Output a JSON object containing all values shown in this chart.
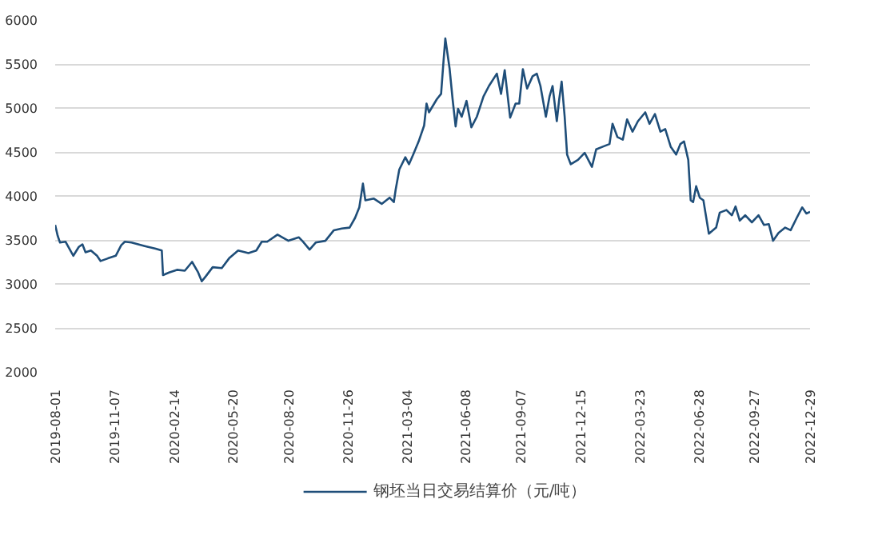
{
  "chart_data": {
    "type": "line",
    "x": [
      "2019-08-01",
      "2019-08-05",
      "2019-08-09",
      "2019-08-18",
      "2019-08-26",
      "2019-08-31",
      "2019-09-09",
      "2019-09-15",
      "2019-09-20",
      "2019-09-29",
      "2019-10-09",
      "2019-10-15",
      "2019-10-27",
      "2019-11-09",
      "2019-11-18",
      "2019-11-24",
      "2019-12-05",
      "2019-12-27",
      "2020-01-14",
      "2020-01-24",
      "2020-01-26",
      "2020-02-05",
      "2020-02-18",
      "2020-03-02",
      "2020-03-14",
      "2020-03-24",
      "2020-03-30",
      "2020-04-06",
      "2020-04-17",
      "2020-05-02",
      "2020-05-14",
      "2020-05-29",
      "2020-06-15",
      "2020-06-28",
      "2020-07-07",
      "2020-07-16",
      "2020-08-02",
      "2020-08-20",
      "2020-09-06",
      "2020-09-13",
      "2020-09-24",
      "2020-10-04",
      "2020-10-20",
      "2020-11-03",
      "2020-11-16",
      "2020-11-29",
      "2020-12-08",
      "2020-12-15",
      "2020-12-21",
      "2020-12-25",
      "2021-01-08",
      "2021-01-21",
      "2021-02-03",
      "2021-02-10",
      "2021-02-13",
      "2021-02-19",
      "2021-03-01",
      "2021-03-07",
      "2021-03-14",
      "2021-03-23",
      "2021-04-01",
      "2021-04-05",
      "2021-04-09",
      "2021-04-22",
      "2021-04-29",
      "2021-05-03",
      "2021-05-06",
      "2021-05-13",
      "2021-05-18",
      "2021-05-23",
      "2021-05-27",
      "2021-06-02",
      "2021-06-10",
      "2021-06-18",
      "2021-06-27",
      "2021-07-08",
      "2021-07-17",
      "2021-07-30",
      "2021-08-06",
      "2021-08-12",
      "2021-08-21",
      "2021-08-30",
      "2021-09-05",
      "2021-09-11",
      "2021-09-18",
      "2021-09-27",
      "2021-10-04",
      "2021-10-10",
      "2021-10-19",
      "2021-10-25",
      "2021-10-30",
      "2021-11-06",
      "2021-11-10",
      "2021-11-14",
      "2021-11-19",
      "2021-11-23",
      "2021-11-29",
      "2021-12-11",
      "2021-12-22",
      "2022-01-03",
      "2022-01-10",
      "2022-01-21",
      "2022-02-01",
      "2022-02-06",
      "2022-02-14",
      "2022-02-23",
      "2022-03-02",
      "2022-03-11",
      "2022-03-20",
      "2022-04-01",
      "2022-04-08",
      "2022-04-17",
      "2022-04-26",
      "2022-05-04",
      "2022-05-13",
      "2022-05-22",
      "2022-05-29",
      "2022-06-04",
      "2022-06-11",
      "2022-06-15",
      "2022-06-19",
      "2022-06-24",
      "2022-06-30",
      "2022-07-06",
      "2022-07-15",
      "2022-07-27",
      "2022-08-02",
      "2022-08-13",
      "2022-08-22",
      "2022-08-28",
      "2022-09-04",
      "2022-09-13",
      "2022-09-24",
      "2022-10-05",
      "2022-10-14",
      "2022-10-22",
      "2022-10-29",
      "2022-11-07",
      "2022-11-18",
      "2022-11-27",
      "2022-12-07",
      "2022-12-16",
      "2022-12-23",
      "2022-12-29"
    ],
    "series": [
      {
        "name": "钢坯当日交易结算价（元/吨）",
        "color": "#1f4e79",
        "values": [
          3670,
          3550,
          3470,
          3480,
          3380,
          3320,
          3420,
          3450,
          3360,
          3380,
          3320,
          3260,
          3290,
          3320,
          3440,
          3480,
          3470,
          3430,
          3400,
          3380,
          3100,
          3130,
          3160,
          3150,
          3250,
          3130,
          3030,
          3090,
          3190,
          3180,
          3290,
          3380,
          3350,
          3380,
          3480,
          3480,
          3560,
          3490,
          3530,
          3480,
          3390,
          3470,
          3490,
          3610,
          3630,
          3640,
          3750,
          3870,
          4140,
          3950,
          3970,
          3910,
          3980,
          3930,
          4070,
          4300,
          4440,
          4360,
          4470,
          4620,
          4800,
          5050,
          4950,
          5100,
          5160,
          5530,
          5790,
          5450,
          5100,
          4790,
          4990,
          4900,
          5080,
          4780,
          4900,
          5130,
          5250,
          5390,
          5160,
          5430,
          4890,
          5050,
          5050,
          5440,
          5220,
          5360,
          5390,
          5250,
          4900,
          5130,
          5250,
          4850,
          5100,
          5300,
          4900,
          4470,
          4360,
          4410,
          4490,
          4330,
          4530,
          4560,
          4590,
          4820,
          4670,
          4640,
          4870,
          4730,
          4850,
          4950,
          4820,
          4930,
          4730,
          4760,
          4560,
          4470,
          4590,
          4620,
          4410,
          3950,
          3930,
          4110,
          3980,
          3950,
          3570,
          3640,
          3810,
          3840,
          3780,
          3880,
          3720,
          3780,
          3700,
          3780,
          3670,
          3680,
          3490,
          3580,
          3640,
          3610,
          3750,
          3870,
          3800,
          3820
        ]
      }
    ],
    "xlim": [
      "2019-08-01",
      "2022-12-29"
    ],
    "xticks": [
      {
        "value": "2019-08-01",
        "label": "2019-08-01"
      },
      {
        "value": "2019-11-07",
        "label": "2019-11-07"
      },
      {
        "value": "2020-02-14",
        "label": "2020-02-14"
      },
      {
        "value": "2020-05-20",
        "label": "2020-05-20"
      },
      {
        "value": "2020-08-20",
        "label": "2020-08-20"
      },
      {
        "value": "2020-11-26",
        "label": "2020-11-26"
      },
      {
        "value": "2021-03-04",
        "label": "2021-03-04"
      },
      {
        "value": "2021-06-08",
        "label": "2021-06-08"
      },
      {
        "value": "2021-09-07",
        "label": "2021-09-07"
      },
      {
        "value": "2021-12-15",
        "label": "2021-12-15"
      },
      {
        "value": "2022-03-23",
        "label": "2022-03-23"
      },
      {
        "value": "2022-06-28",
        "label": "2022-06-28"
      },
      {
        "value": "2022-09-27",
        "label": "2022-09-27"
      },
      {
        "value": "2022-12-29",
        "label": "2022-12-29"
      }
    ],
    "ylim": [
      2000,
      6000
    ],
    "yticks": [
      2000,
      2500,
      3000,
      3500,
      4000,
      4500,
      5000,
      5500,
      6000
    ],
    "grid": "y",
    "legend": "bottom",
    "marker": "none",
    "line_style": "solid"
  }
}
